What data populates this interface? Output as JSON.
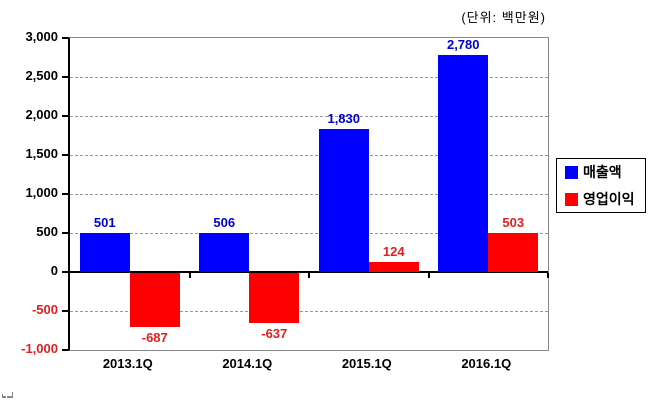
{
  "chart_data": {
    "type": "bar",
    "title": "",
    "unit_label": "(단위: 백만원)",
    "categories": [
      "2013.1Q",
      "2014.1Q",
      "2015.1Q",
      "2016.1Q"
    ],
    "series": [
      {
        "key": "revenue",
        "name": "매출액",
        "color": "#0000fe",
        "label_color": "#0000d0",
        "values": [
          501,
          506,
          1830,
          2780
        ],
        "labels": [
          "501",
          "506",
          "1,830",
          "2,780"
        ]
      },
      {
        "key": "operating-profit",
        "name": "영업이익",
        "color": "#fe0000",
        "label_color": "#e02020",
        "values": [
          -687,
          -637,
          124,
          503
        ],
        "labels": [
          "-687",
          "-637",
          "124",
          "503"
        ]
      }
    ],
    "ylim": [
      -1000,
      3000
    ],
    "ytick_step": 500,
    "yticks": [
      "3,000",
      "2,500",
      "2,000",
      "1,500",
      "1,000",
      "500",
      "0",
      "-500",
      "-1,000"
    ],
    "ytick_values": [
      3000,
      2500,
      2000,
      1500,
      1000,
      500,
      0,
      -500,
      -1000
    ],
    "negative_tick_color": "#e02020",
    "grid": "horizontal-dashed",
    "legend_position": "right"
  }
}
